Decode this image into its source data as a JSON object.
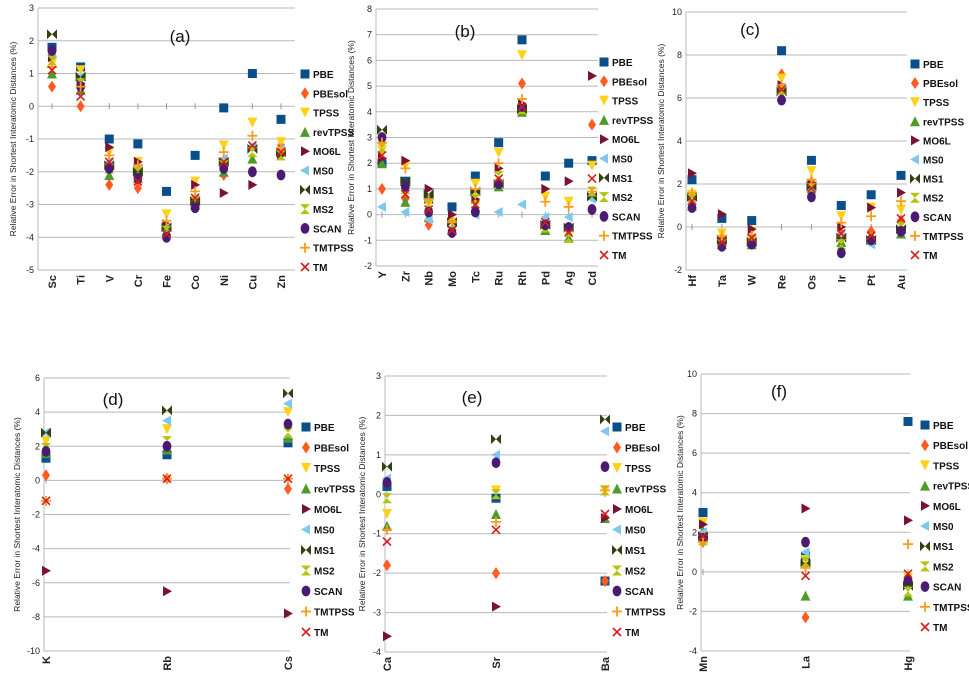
{
  "figure": {
    "ylabel": "Relative Error in Shortest Interatomic Distances (%)",
    "methods": [
      "PBE",
      "PBEsol",
      "TPSS",
      "revTPSS",
      "MO6L",
      "MS0",
      "MS1",
      "MS2",
      "SCAN",
      "TMTPSS",
      "TM"
    ],
    "colors": {
      "PBE": "#0b4f8a",
      "PBEsol": "#ff5a1f",
      "TPSS": "#ffd21a",
      "revTPSS": "#4e9a2b",
      "MO6L": "#7a1235",
      "MS0": "#7fc7ef",
      "MS1": "#33400f",
      "MS2": "#b3c410",
      "SCAN": "#4b1b72",
      "TMTPSS": "#ff9a1a",
      "TM": "#d61d1d"
    },
    "markers": {
      "PBE": "square",
      "PBEsol": "diamond",
      "TPSS": "triangle-down",
      "revTPSS": "triangle-up",
      "MO6L": "triangle-right",
      "MS0": "triangle-left",
      "MS1": "bowtie",
      "MS2": "hourglass",
      "SCAN": "circle",
      "TMTPSS": "plus",
      "TM": "cross"
    }
  },
  "chart_data": [
    {
      "type": "scatter",
      "title": "(a)",
      "ylabel": "Relative Error in Shortest Interatomic Distances (%)",
      "ylim": [
        -5,
        3
      ],
      "yticks": [
        3,
        2,
        1,
        0,
        -1,
        -2,
        -3,
        -4,
        -5
      ],
      "categories": [
        "Sc",
        "Ti",
        "V",
        "Cr",
        "Fe",
        "Co",
        "Ni",
        "Cu",
        "Zn"
      ],
      "series": [
        {
          "name": "PBE",
          "values": [
            1.8,
            1.2,
            -1.0,
            -1.15,
            -2.6,
            -1.5,
            -0.05,
            1.0,
            -0.4
          ]
        },
        {
          "name": "PBEsol",
          "values": [
            0.6,
            0.0,
            -2.4,
            -2.5,
            -3.9,
            -3.0,
            -2.1,
            -2.0,
            -1.2
          ]
        },
        {
          "name": "TPSS",
          "values": [
            1.3,
            1.1,
            -1.4,
            -1.7,
            -3.3,
            -2.3,
            -1.2,
            -0.5,
            -1.1
          ]
        },
        {
          "name": "revTPSS",
          "values": [
            1.0,
            0.5,
            -2.1,
            -2.2,
            -3.8,
            -3.0,
            -2.0,
            -1.6,
            -1.3
          ]
        },
        {
          "name": "MO6L",
          "values": [
            1.5,
            0.7,
            -1.25,
            -1.7,
            -3.6,
            -2.4,
            -2.65,
            -2.4,
            -1.5
          ]
        },
        {
          "name": "MS0",
          "values": [
            1.6,
            0.9,
            -1.7,
            -1.9,
            -3.7,
            -2.8,
            -1.6,
            -1.2,
            -1.3
          ]
        },
        {
          "name": "MS1",
          "values": [
            2.2,
            0.9,
            -1.8,
            -2.0,
            -3.7,
            -2.9,
            -1.7,
            -1.3,
            -1.4
          ]
        },
        {
          "name": "MS2",
          "values": [
            1.4,
            0.7,
            -1.9,
            -2.0,
            -3.8,
            -2.9,
            -1.8,
            -1.4,
            -1.5
          ]
        },
        {
          "name": "SCAN",
          "values": [
            1.7,
            0.6,
            -1.9,
            -2.2,
            -4.0,
            -3.1,
            -1.9,
            -2.0,
            -2.1
          ]
        },
        {
          "name": "TMTPSS",
          "values": [
            1.2,
            0.6,
            -1.5,
            -1.8,
            -3.5,
            -2.6,
            -1.4,
            -0.9,
            -1.3
          ]
        },
        {
          "name": "TM",
          "values": [
            1.1,
            0.3,
            -1.7,
            -2.3,
            -3.9,
            -2.8,
            -1.7,
            -1.2,
            -1.4
          ]
        }
      ]
    },
    {
      "type": "scatter",
      "title": "(b)",
      "ylabel": "Relative Error in Shortest Interatomic Distances (%)",
      "ylim": [
        -2,
        8
      ],
      "yticks": [
        8,
        7,
        6,
        5,
        4,
        3,
        2,
        1,
        0,
        -1,
        -2
      ],
      "categories": [
        "Y",
        "Zr",
        "Nb",
        "Mo",
        "Tc",
        "Ru",
        "Rh",
        "Pd",
        "Ag",
        "Cd"
      ],
      "series": [
        {
          "name": "PBE",
          "values": [
            2.0,
            1.3,
            0.6,
            0.3,
            1.5,
            2.8,
            6.8,
            1.5,
            2.0,
            2.1
          ]
        },
        {
          "name": "PBEsol",
          "values": [
            1.0,
            0.6,
            -0.4,
            -0.7,
            0.5,
            1.3,
            5.1,
            -0.3,
            -0.6,
            3.5
          ]
        },
        {
          "name": "TPSS",
          "values": [
            2.5,
            1.9,
            0.4,
            -0.3,
            1.2,
            2.4,
            6.2,
            0.7,
            0.5,
            1.9
          ]
        },
        {
          "name": "revTPSS",
          "values": [
            2.0,
            0.5,
            -0.1,
            -0.6,
            0.3,
            1.1,
            4.0,
            -0.6,
            -0.9,
            0.8
          ]
        },
        {
          "name": "MO6L",
          "values": [
            2.2,
            2.1,
            1.0,
            0.0,
            0.6,
            1.8,
            4.3,
            1.0,
            1.3,
            5.4
          ]
        },
        {
          "name": "MS0",
          "values": [
            0.3,
            0.1,
            -0.2,
            -0.5,
            0.0,
            0.1,
            0.4,
            -0.1,
            -0.1,
            0.6
          ]
        },
        {
          "name": "MS1",
          "values": [
            3.3,
            1.3,
            0.8,
            -0.3,
            0.9,
            1.2,
            4.1,
            -0.4,
            -0.5,
            0.7
          ]
        },
        {
          "name": "MS2",
          "values": [
            2.6,
            1.0,
            0.4,
            -0.4,
            0.6,
            1.5,
            4.1,
            -0.5,
            -0.9,
            0.9
          ]
        },
        {
          "name": "SCAN",
          "values": [
            3.0,
            1.1,
            0.1,
            -0.7,
            0.1,
            1.2,
            4.2,
            -0.4,
            -0.5,
            0.2
          ]
        },
        {
          "name": "TMTPSS",
          "values": [
            2.8,
            1.8,
            0.6,
            -0.3,
            1.0,
            2.0,
            4.5,
            0.5,
            0.3,
            0.9
          ]
        },
        {
          "name": "TM",
          "values": [
            2.3,
            0.8,
            0.2,
            -0.6,
            0.4,
            1.4,
            4.2,
            -0.3,
            -0.7,
            1.4
          ]
        }
      ]
    },
    {
      "type": "scatter",
      "title": "(c)",
      "ylabel": "Relative Error in Shortest Interatomic Distances (%)",
      "ylim": [
        -2,
        10
      ],
      "yticks": [
        10,
        8,
        6,
        4,
        2,
        0,
        -2
      ],
      "categories": [
        "Hf",
        "Ta",
        "W",
        "Re",
        "Os",
        "Ir",
        "Pt",
        "Au"
      ],
      "series": [
        {
          "name": "PBE",
          "values": [
            2.2,
            0.4,
            0.3,
            8.2,
            3.1,
            1.0,
            1.5,
            2.4
          ]
        },
        {
          "name": "PBEsol",
          "values": [
            1.2,
            -0.6,
            -0.7,
            7.1,
            2.1,
            -0.3,
            -0.2,
            0.3
          ]
        },
        {
          "name": "TPSS",
          "values": [
            1.5,
            -0.3,
            -0.2,
            6.9,
            2.6,
            0.5,
            0.9,
            0.8
          ]
        },
        {
          "name": "revTPSS",
          "values": [
            1.0,
            -0.8,
            -0.8,
            6.1,
            1.8,
            -0.7,
            -0.6,
            -0.3
          ]
        },
        {
          "name": "MO6L",
          "values": [
            2.5,
            0.6,
            -0.1,
            6.6,
            2.0,
            0.0,
            0.9,
            1.6
          ]
        },
        {
          "name": "MS0",
          "values": [
            1.3,
            -0.7,
            -0.6,
            6.5,
            1.7,
            -0.4,
            -0.8,
            -0.2
          ]
        },
        {
          "name": "MS1",
          "values": [
            1.4,
            -0.6,
            -0.7,
            6.3,
            1.9,
            -0.5,
            -0.6,
            -0.1
          ]
        },
        {
          "name": "MS2",
          "values": [
            1.3,
            -0.8,
            -0.7,
            6.4,
            1.8,
            -0.8,
            -0.5,
            0.0
          ]
        },
        {
          "name": "SCAN",
          "values": [
            0.9,
            -0.9,
            -0.8,
            5.9,
            1.4,
            -1.2,
            -0.6,
            -0.2
          ]
        },
        {
          "name": "TMTPSS",
          "values": [
            1.6,
            -0.4,
            -0.4,
            6.6,
            2.2,
            0.2,
            0.5,
            1.2
          ]
        },
        {
          "name": "TM",
          "values": [
            1.2,
            -0.7,
            -0.5,
            6.4,
            1.8,
            -0.3,
            -0.4,
            0.4
          ]
        }
      ]
    },
    {
      "type": "scatter",
      "title": "(d)",
      "ylabel": "Relative Error in Shortest Interatomic Distances (%)",
      "ylim": [
        -10,
        6
      ],
      "yticks": [
        6,
        4,
        2,
        0,
        -2,
        -4,
        -6,
        -8,
        -10
      ],
      "categories": [
        "K",
        "Rb",
        "Cs"
      ],
      "series": [
        {
          "name": "PBE",
          "values": [
            1.3,
            1.5,
            2.2
          ]
        },
        {
          "name": "PBEsol",
          "values": [
            0.3,
            0.1,
            -0.5
          ]
        },
        {
          "name": "TPSS",
          "values": [
            2.3,
            3.0,
            4.0
          ]
        },
        {
          "name": "revTPSS",
          "values": [
            1.6,
            1.8,
            2.5
          ]
        },
        {
          "name": "MO6L",
          "values": [
            -5.3,
            -6.5,
            -7.8
          ]
        },
        {
          "name": "MS0",
          "values": [
            2.8,
            3.5,
            4.5
          ]
        },
        {
          "name": "MS1",
          "values": [
            2.8,
            4.1,
            5.1
          ]
        },
        {
          "name": "MS2",
          "values": [
            1.9,
            2.3,
            2.8
          ]
        },
        {
          "name": "SCAN",
          "values": [
            1.7,
            2.0,
            3.3
          ]
        },
        {
          "name": "TMTPSS",
          "values": [
            -1.2,
            0.1,
            0.1
          ]
        },
        {
          "name": "TM",
          "values": [
            -1.2,
            0.1,
            0.1
          ]
        }
      ]
    },
    {
      "type": "scatter",
      "title": "(e)",
      "ylabel": "Relative Error in Shortest Interatomic Distances (%)",
      "ylim": [
        -4,
        3
      ],
      "yticks": [
        3,
        2,
        1,
        0,
        -1,
        -2,
        -3,
        -4
      ],
      "categories": [
        "Ca",
        "Sr",
        "Ba"
      ],
      "series": [
        {
          "name": "PBE",
          "values": [
            0.2,
            -0.1,
            -2.2
          ]
        },
        {
          "name": "PBEsol",
          "values": [
            -1.8,
            -2.0,
            -2.2
          ]
        },
        {
          "name": "TPSS",
          "values": [
            -0.5,
            0.1,
            0.1
          ]
        },
        {
          "name": "revTPSS",
          "values": [
            -0.8,
            -0.5,
            -0.6
          ]
        },
        {
          "name": "MO6L",
          "values": [
            -3.6,
            -2.85,
            -0.6
          ]
        },
        {
          "name": "MS0",
          "values": [
            0.4,
            1.0,
            1.6
          ]
        },
        {
          "name": "MS1",
          "values": [
            0.7,
            1.4,
            1.9
          ]
        },
        {
          "name": "MS2",
          "values": [
            -0.1,
            0.0,
            0.1
          ]
        },
        {
          "name": "SCAN",
          "values": [
            0.3,
            0.8,
            0.7
          ]
        },
        {
          "name": "TMTPSS",
          "values": [
            -0.9,
            -0.7,
            0.1
          ]
        },
        {
          "name": "TM",
          "values": [
            -1.2,
            -0.9,
            -0.5
          ]
        }
      ]
    },
    {
      "type": "scatter",
      "title": "(f)",
      "ylabel": "Relative Error in Shortest Interatomic Distances (%)",
      "ylim": [
        -4,
        10
      ],
      "yticks": [
        10,
        8,
        6,
        4,
        2,
        0,
        -2,
        -4
      ],
      "categories": [
        "Mn",
        "La",
        "Hg"
      ],
      "series": [
        {
          "name": "PBE",
          "values": [
            3.0,
            0.8,
            7.6
          ]
        },
        {
          "name": "PBEsol",
          "values": [
            1.5,
            -2.3,
            -0.6
          ]
        },
        {
          "name": "TPSS",
          "values": [
            2.5,
            0.6,
            -0.3
          ]
        },
        {
          "name": "revTPSS",
          "values": [
            2.1,
            -1.2,
            -1.2
          ]
        },
        {
          "name": "MO6L",
          "values": [
            2.4,
            3.2,
            2.6
          ]
        },
        {
          "name": "MS0",
          "values": [
            2.0,
            1.0,
            -0.6
          ]
        },
        {
          "name": "MS1",
          "values": [
            1.8,
            0.4,
            -0.7
          ]
        },
        {
          "name": "MS2",
          "values": [
            1.6,
            0.5,
            -1.0
          ]
        },
        {
          "name": "SCAN",
          "values": [
            1.7,
            1.5,
            -0.4
          ]
        },
        {
          "name": "TMTPSS",
          "values": [
            1.5,
            0.2,
            1.4
          ]
        },
        {
          "name": "TM",
          "values": [
            1.8,
            -0.2,
            -0.1
          ]
        }
      ]
    }
  ]
}
